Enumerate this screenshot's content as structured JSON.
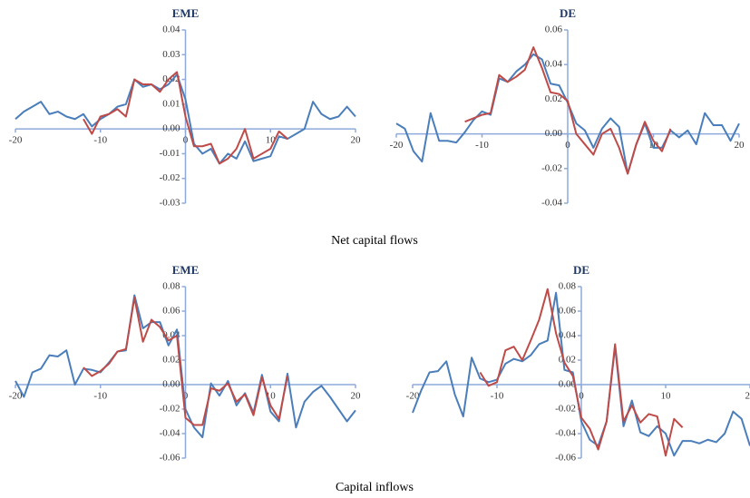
{
  "captions": [
    "Net capital flows",
    "Capital inflows"
  ],
  "chart_data": [
    {
      "type": "line",
      "title": "EME",
      "x": [
        -20,
        -19,
        -18,
        -17,
        -16,
        -15,
        -14,
        -13,
        -12,
        -11,
        -10,
        -9,
        -8,
        -7,
        -6,
        -5,
        -4,
        -3,
        -2,
        -1,
        0,
        1,
        2,
        3,
        4,
        5,
        6,
        7,
        8,
        9,
        10,
        11,
        12,
        13,
        14,
        15,
        16,
        17,
        18,
        19,
        20
      ],
      "xlim": [
        -20,
        20
      ],
      "xticks": [
        -20,
        -10,
        0,
        10,
        20
      ],
      "ylim": [
        -0.03,
        0.04
      ],
      "yticks": [
        -0.03,
        -0.02,
        -0.01,
        {
          "value": 0,
          "label": "0.00"
        },
        0.01,
        0.02,
        0.03,
        0.04
      ],
      "series": [
        {
          "color": "#4a7ebb",
          "values": [
            0.004,
            0.007,
            0.009,
            0.011,
            0.006,
            0.007,
            0.005,
            0.004,
            0.006,
            0.001,
            0.004,
            0.006,
            0.009,
            0.01,
            0.02,
            0.017,
            0.018,
            0.016,
            0.018,
            0.022,
            0.012,
            -0.006,
            -0.01,
            -0.008,
            -0.014,
            -0.01,
            -0.012,
            -0.005,
            -0.013,
            -0.012,
            -0.011,
            -0.003,
            -0.004,
            -0.002,
            0.0,
            0.011,
            0.006,
            0.004,
            0.005,
            0.009,
            0.005
          ]
        },
        {
          "color": "#be4b48",
          "values": [
            null,
            null,
            null,
            null,
            null,
            null,
            null,
            null,
            0.004,
            -0.002,
            0.005,
            0.006,
            0.008,
            0.005,
            0.02,
            0.018,
            0.018,
            0.015,
            0.02,
            0.023,
            0.005,
            -0.007,
            -0.007,
            -0.006,
            -0.014,
            -0.012,
            -0.008,
            0.0,
            -0.012,
            -0.01,
            -0.008,
            -0.001,
            -0.004,
            null,
            null,
            null,
            null,
            null,
            null,
            null,
            null
          ]
        }
      ]
    },
    {
      "type": "line",
      "title": "DE",
      "x": [
        -20,
        -19,
        -18,
        -17,
        -16,
        -15,
        -14,
        -13,
        -12,
        -11,
        -10,
        -9,
        -8,
        -7,
        -6,
        -5,
        -4,
        -3,
        -2,
        -1,
        0,
        1,
        2,
        3,
        4,
        5,
        6,
        7,
        8,
        9,
        10,
        11,
        12,
        13,
        14,
        15,
        16,
        17,
        18,
        19,
        20
      ],
      "xlim": [
        -20,
        20
      ],
      "xticks": [
        -20,
        -10,
        0,
        10,
        20
      ],
      "ylim": [
        -0.04,
        0.06
      ],
      "yticks": [
        -0.04,
        -0.02,
        {
          "value": 0,
          "label": "0.00"
        },
        0.02,
        0.04,
        0.06
      ],
      "series": [
        {
          "color": "#4a7ebb",
          "values": [
            0.006,
            0.003,
            -0.01,
            -0.016,
            0.012,
            -0.004,
            -0.004,
            -0.005,
            0.001,
            0.008,
            0.013,
            0.011,
            0.032,
            0.03,
            0.036,
            0.04,
            0.046,
            0.043,
            0.029,
            0.028,
            0.018,
            0.006,
            0.002,
            -0.008,
            0.003,
            0.009,
            0.004,
            -0.023,
            -0.006,
            0.006,
            -0.008,
            -0.008,
            0.002,
            -0.002,
            0.002,
            -0.006,
            0.012,
            0.005,
            0.005,
            -0.004,
            0.006
          ]
        },
        {
          "color": "#be4b48",
          "values": [
            null,
            null,
            null,
            null,
            null,
            null,
            null,
            null,
            0.007,
            0.009,
            0.011,
            0.012,
            0.034,
            0.03,
            0.033,
            0.037,
            0.05,
            0.038,
            0.024,
            0.023,
            0.019,
            0.0,
            -0.006,
            -0.012,
            0.0,
            0.003,
            -0.008,
            -0.023,
            -0.006,
            0.007,
            -0.004,
            -0.01,
            0.003,
            null,
            null,
            null,
            null,
            null,
            null,
            null,
            null
          ]
        }
      ]
    },
    {
      "type": "line",
      "title": "EME",
      "x": [
        -20,
        -19,
        -18,
        -17,
        -16,
        -15,
        -14,
        -13,
        -12,
        -11,
        -10,
        -9,
        -8,
        -7,
        -6,
        -5,
        -4,
        -3,
        -2,
        -1,
        0,
        1,
        2,
        3,
        4,
        5,
        6,
        7,
        8,
        9,
        10,
        11,
        12,
        13,
        14,
        15,
        16,
        17,
        18,
        19,
        20
      ],
      "xlim": [
        -20,
        20
      ],
      "xticks": [
        -20,
        -10,
        0,
        10,
        20
      ],
      "ylim": [
        -0.06,
        0.08
      ],
      "yticks": [
        -0.06,
        -0.04,
        -0.02,
        {
          "value": 0,
          "label": "0.00"
        },
        0.02,
        0.04,
        0.06,
        0.08
      ],
      "series": [
        {
          "color": "#4a7ebb",
          "values": [
            0.003,
            -0.01,
            0.01,
            0.013,
            0.024,
            0.023,
            0.028,
            0.0,
            0.013,
            0.012,
            0.01,
            0.018,
            0.027,
            0.028,
            0.073,
            0.046,
            0.051,
            0.051,
            0.032,
            0.045,
            -0.02,
            -0.035,
            -0.043,
            0.001,
            -0.009,
            0.003,
            -0.017,
            -0.007,
            -0.023,
            0.008,
            -0.022,
            -0.03,
            0.009,
            -0.035,
            -0.014,
            -0.006,
            -0.001,
            -0.01,
            -0.02,
            -0.03,
            -0.021
          ]
        },
        {
          "color": "#be4b48",
          "values": [
            null,
            null,
            null,
            null,
            null,
            null,
            null,
            null,
            0.014,
            0.007,
            0.011,
            0.017,
            0.027,
            0.029,
            0.071,
            0.035,
            0.053,
            0.047,
            0.036,
            0.04,
            -0.027,
            -0.033,
            -0.033,
            -0.003,
            -0.005,
            0.001,
            -0.014,
            -0.008,
            -0.025,
            0.006,
            -0.017,
            -0.028,
            0.007,
            null,
            null,
            null,
            null,
            null,
            null,
            null,
            null
          ]
        }
      ]
    },
    {
      "type": "line",
      "title": "DE",
      "x": [
        -20,
        -19,
        -18,
        -17,
        -16,
        -15,
        -14,
        -13,
        -12,
        -11,
        -10,
        -9,
        -8,
        -7,
        -6,
        -5,
        -4,
        -3,
        -2,
        -1,
        0,
        1,
        2,
        3,
        4,
        5,
        6,
        7,
        8,
        9,
        10,
        11,
        12,
        13,
        14,
        15,
        16,
        17,
        18,
        19,
        20
      ],
      "xlim": [
        -20,
        20
      ],
      "xticks": [
        -20,
        -10,
        0,
        10,
        20
      ],
      "ylim": [
        -0.06,
        0.08
      ],
      "yticks": [
        -0.06,
        -0.04,
        -0.02,
        {
          "value": 0,
          "label": "0.00"
        },
        0.02,
        0.04,
        0.06,
        0.08
      ],
      "series": [
        {
          "color": "#4a7ebb",
          "values": [
            -0.023,
            -0.005,
            0.01,
            0.011,
            0.019,
            -0.008,
            -0.026,
            0.022,
            0.005,
            0.002,
            0.004,
            0.017,
            0.021,
            0.019,
            0.024,
            0.033,
            0.036,
            0.075,
            0.012,
            0.01,
            -0.03,
            -0.045,
            -0.05,
            -0.03,
            0.031,
            -0.034,
            -0.013,
            -0.039,
            -0.042,
            -0.034,
            -0.04,
            -0.058,
            -0.046,
            -0.046,
            -0.048,
            -0.045,
            -0.047,
            -0.04,
            -0.022,
            -0.028,
            -0.05
          ]
        },
        {
          "color": "#be4b48",
          "values": [
            null,
            null,
            null,
            null,
            null,
            null,
            null,
            null,
            0.01,
            -0.001,
            0.002,
            0.028,
            0.031,
            0.02,
            0.036,
            0.053,
            0.078,
            0.042,
            0.018,
            0.007,
            -0.027,
            -0.036,
            -0.053,
            -0.03,
            0.033,
            -0.03,
            -0.017,
            -0.031,
            -0.024,
            -0.026,
            -0.058,
            -0.028,
            -0.035,
            null,
            null,
            null,
            null,
            null,
            null,
            null,
            null
          ]
        }
      ]
    }
  ]
}
